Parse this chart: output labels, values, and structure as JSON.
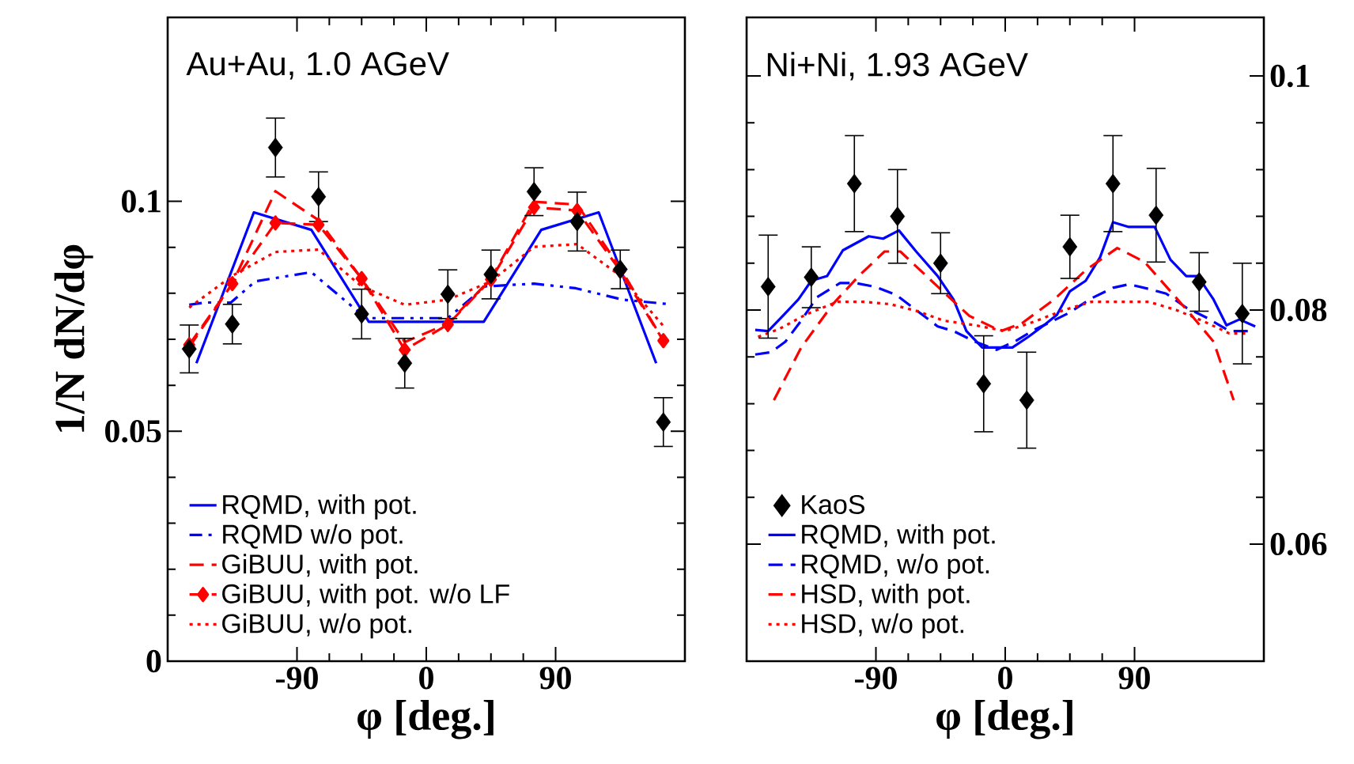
{
  "chart_data": [
    {
      "type": "line",
      "title": "Au+Au, 1.0 AGeV",
      "xlabel": "φ [deg.]",
      "ylabel": "1/N dN/dφ",
      "xlim": [
        -180,
        180
      ],
      "xticks": [
        -90,
        0,
        90
      ],
      "ylim": [
        0,
        0.14
      ],
      "yticks": [
        0,
        0.05,
        0.1
      ],
      "legend": "bottom left",
      "series": [
        {
          "type": "scatter",
          "color": "#000000",
          "marker": "diamond",
          "x": [
            -165,
            -135,
            -105,
            -75,
            -45,
            -15,
            15,
            45,
            75,
            105,
            135,
            165
          ],
          "values": [
            0.0679,
            0.0733,
            0.1117,
            0.101,
            0.0755,
            0.0648,
            0.0798,
            0.0841,
            0.1021,
            0.0956,
            0.0852,
            0.052
          ],
          "errors": [
            0.0052,
            0.0043,
            0.0064,
            0.0054,
            0.0054,
            0.0054,
            0.0053,
            0.0053,
            0.0052,
            0.0064,
            0.0042,
            0.0053
          ]
        },
        {
          "name": "RQMD, with pot.",
          "color": "#0000ff",
          "line_style": "solid",
          "x": [
            -160,
            -120,
            -80,
            -40,
            40,
            80,
            120,
            160
          ],
          "values": [
            0.0648,
            0.0976,
            0.0938,
            0.0738,
            0.0738,
            0.0938,
            0.0976,
            0.0648
          ]
        },
        {
          "name": "RQMD w/o pot.",
          "color": "#0000ff",
          "line_style": "dashdotted",
          "x": [
            -165,
            -154,
            -136,
            -119,
            -80,
            -42,
            -14,
            15,
            41,
            75,
            104,
            137,
            167
          ],
          "values": [
            0.0775,
            0.078,
            0.078,
            0.0826,
            0.0846,
            0.0746,
            0.0746,
            0.0746,
            0.0815,
            0.0821,
            0.0811,
            0.0786,
            0.0777
          ]
        },
        {
          "name": "GiBUU, with pot.",
          "color": "#ff0000",
          "line_style": "dashed",
          "x": [
            -165,
            -135,
            -105,
            -75,
            -45,
            -15,
            15,
            45,
            75,
            105,
            135,
            165
          ],
          "values": [
            0.0683,
            0.0821,
            0.1022,
            0.0959,
            0.0832,
            0.0694,
            0.0734,
            0.0832,
            0.0999,
            0.0993,
            0.0855,
            0.0697
          ]
        },
        {
          "name": "GiBUU, with pot. w/o LF",
          "color": "#ff0000",
          "line_style": "dashed",
          "marker": "diamond",
          "x": [
            -165,
            -135,
            -105,
            -75,
            -45,
            -15,
            15,
            45,
            75,
            105,
            135,
            165
          ],
          "values": [
            0.0688,
            0.0821,
            0.0953,
            0.0949,
            0.0832,
            0.0677,
            0.0732,
            0.083,
            0.0987,
            0.098,
            0.0849,
            0.0697
          ]
        },
        {
          "name": "GiBUU, w/o pot.",
          "color": "#ff0000",
          "line_style": "dotted",
          "x": [
            -165,
            -135,
            -105,
            -75,
            -45,
            -15,
            15,
            45,
            75,
            105,
            135,
            165
          ],
          "values": [
            0.0769,
            0.0838,
            0.089,
            0.0895,
            0.0815,
            0.0775,
            0.0786,
            0.0826,
            0.0901,
            0.0907,
            0.0838,
            0.0729
          ]
        }
      ]
    },
    {
      "type": "line",
      "title": "Ni+Ni, 1.93 AGeV",
      "xlabel": "φ [deg.]",
      "xlim": [
        -180,
        180
      ],
      "xticks": [
        -90,
        0,
        90
      ],
      "y2lim": [
        0.05,
        0.105
      ],
      "y2ticks": [
        0.06,
        0.08,
        0.1
      ],
      "legend": "bottom left",
      "series": [
        {
          "type": "scatter",
          "name": "KaoS",
          "axis": "y2",
          "color": "#000000",
          "marker": "diamond",
          "x": [
            -165,
            -135,
            -105,
            -75,
            -45,
            -15,
            15,
            45,
            75,
            105,
            135,
            165
          ],
          "values": [
            0.082,
            0.0828,
            0.0908,
            0.088,
            0.084,
            0.0737,
            0.0723,
            0.0854,
            0.0908,
            0.0881,
            0.0824,
            0.0797
          ],
          "errors": [
            0.0044,
            0.0026,
            0.0041,
            0.004,
            0.0026,
            0.0041,
            0.0041,
            0.0027,
            0.0041,
            0.004,
            0.0025,
            0.0043
          ]
        },
        {
          "name": "RQMD, with pot.",
          "axis": "y2",
          "color": "#0000ff",
          "line_style": "solid",
          "x": [
            -174,
            -165,
            -154,
            -144,
            -135,
            -124,
            -113,
            -95,
            -85,
            -74,
            -62,
            -47,
            -36,
            -27,
            -16,
            -6,
            5,
            16,
            27,
            36,
            45,
            56,
            66,
            75,
            86,
            104,
            115,
            126,
            134,
            145,
            154,
            163,
            174
          ],
          "values": [
            0.0783,
            0.0782,
            0.0796,
            0.0809,
            0.0825,
            0.0829,
            0.0851,
            0.0863,
            0.0861,
            0.0868,
            0.085,
            0.0829,
            0.0809,
            0.0782,
            0.0768,
            0.0768,
            0.0768,
            0.0777,
            0.0787,
            0.0796,
            0.0816,
            0.0825,
            0.0845,
            0.0875,
            0.0871,
            0.0871,
            0.0843,
            0.0829,
            0.0829,
            0.0809,
            0.0787,
            0.0792,
            0.0786
          ]
        },
        {
          "name": "RQMD, w/o pot.",
          "axis": "y2",
          "color": "#0000ff",
          "line_style": "dashed",
          "x": [
            -174,
            -163,
            -153,
            -142,
            -131,
            -115,
            -104,
            -91,
            -76,
            -62,
            -47,
            -36,
            -21,
            -6,
            8,
            20,
            32,
            45,
            60,
            75,
            86,
            100,
            112,
            126,
            141,
            156,
            174
          ],
          "values": [
            0.0762,
            0.0764,
            0.0773,
            0.0791,
            0.0811,
            0.0823,
            0.0823,
            0.082,
            0.0813,
            0.08,
            0.0786,
            0.0782,
            0.0773,
            0.0766,
            0.0774,
            0.0783,
            0.079,
            0.0798,
            0.081,
            0.0819,
            0.0822,
            0.0818,
            0.0814,
            0.0802,
            0.0793,
            0.0782,
            0.0782
          ]
        },
        {
          "name": "HSD, with pot.",
          "axis": "y2",
          "color": "#ff0000",
          "line_style": "dashed",
          "x": [
            -161,
            -142,
            -120,
            -102,
            -84,
            -73,
            -47,
            -25,
            -3,
            12,
            34,
            56,
            78,
            97,
            115,
            130,
            145,
            159
          ],
          "values": [
            0.0723,
            0.0768,
            0.0805,
            0.0829,
            0.085,
            0.085,
            0.082,
            0.0795,
            0.0782,
            0.0789,
            0.0809,
            0.0834,
            0.0853,
            0.0841,
            0.0816,
            0.0795,
            0.0773,
            0.0723
          ]
        },
        {
          "name": "HSD, w/o pot.",
          "axis": "y2",
          "color": "#ff0000",
          "line_style": "dotted",
          "x": [
            -172,
            -157,
            -139,
            -117,
            -98,
            -80,
            -61,
            -43,
            -21,
            0,
            20,
            41,
            60,
            82,
            100,
            119,
            137,
            156,
            170
          ],
          "values": [
            0.0777,
            0.0784,
            0.0796,
            0.0807,
            0.0807,
            0.0805,
            0.0799,
            0.0791,
            0.0787,
            0.0782,
            0.079,
            0.08,
            0.0807,
            0.0807,
            0.0807,
            0.08,
            0.0791,
            0.078,
            0.078
          ]
        }
      ]
    }
  ]
}
